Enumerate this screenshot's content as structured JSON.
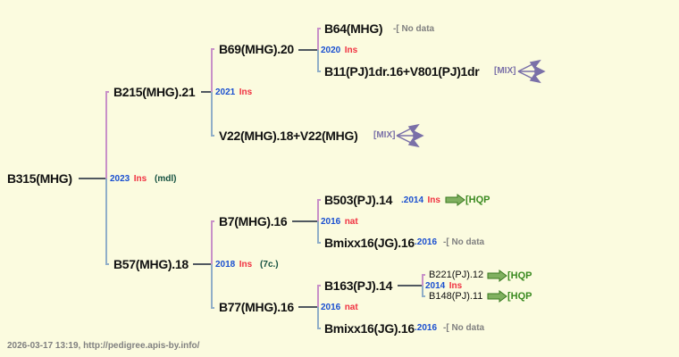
{
  "root": {
    "name": "B315(MHG)",
    "year": "2023",
    "mating": "Ins",
    "note": "(mdl)"
  },
  "sire": {
    "name": "B215(MHG).21",
    "year": "2021",
    "mating": "Ins"
  },
  "sire_sire": {
    "name": "B69(MHG).20",
    "year": "2020",
    "mating": "Ins"
  },
  "sire_sire_sire": {
    "name": "B64(MHG)",
    "status": "-[ No data"
  },
  "sire_sire_dam": {
    "name": "B11(PJ)1dr.16+V801(PJ)1dr",
    "tag": "[MIX]"
  },
  "sire_dam": {
    "name": "V22(MHG).18+V22(MHG)",
    "tag": "[MIX]"
  },
  "dam": {
    "name": "B57(MHG).18",
    "year": "2018",
    "mating": "Ins",
    "note": "(7c.)"
  },
  "dam_sire": {
    "name": "B7(MHG).16",
    "year": "2016",
    "mating": "nat"
  },
  "dam_sire_sire": {
    "name": "B503(PJ).14",
    "year": ".2014",
    "mating": "Ins",
    "tag": "[HQP"
  },
  "dam_sire_dam": {
    "name": "Bmixx16(JG).16",
    "year": ".2016",
    "status": "-[ No data"
  },
  "dam_dam": {
    "name": "B77(MHG).16",
    "year": "2016",
    "mating": "nat"
  },
  "dam_dam_sire": {
    "name": "B163(PJ).14",
    "year": "2014",
    "mating": "Ins"
  },
  "dam_dam_sire_sire": {
    "name": "B221(PJ).12",
    "tag": "[HQP"
  },
  "dam_dam_sire_dam": {
    "name": "B148(PJ).11",
    "tag": "[HQP"
  },
  "dam_dam_dam": {
    "name": "Bmixx16(JG).16",
    "year": ".2016",
    "status": "-[ No data"
  },
  "footer": "2026-03-17 13:19, http://pedigree.apis-by.info/",
  "colors": {
    "background": "#fbfbdf",
    "year": "#1a4fd0",
    "mating": "#f03040",
    "sire_line": "#c890c8",
    "dam_line": "#90aec8",
    "hqp": "#3a8a20",
    "mix": "#7a70a8"
  }
}
